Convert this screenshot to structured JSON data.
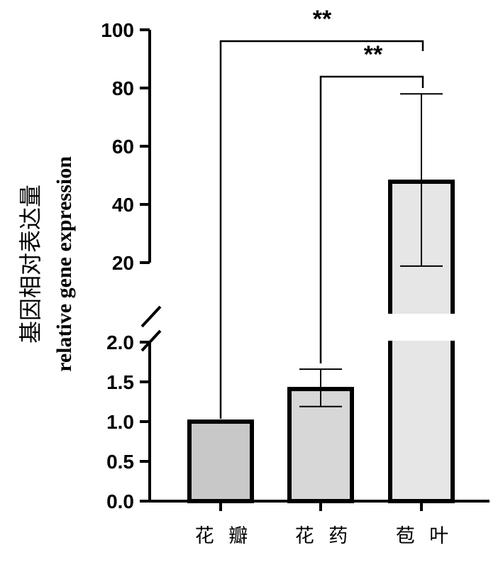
{
  "chart_data": {
    "type": "bar",
    "categories": [
      "花 瓣",
      "花 药",
      "苞 叶"
    ],
    "values": [
      1.0,
      1.41,
      47.8
    ],
    "error_low": [
      1.0,
      1.19,
      18.8
    ],
    "error_high": [
      1.0,
      1.66,
      78.0
    ],
    "bar_colors": [
      "#c8c8c8",
      "#d7d7d7",
      "#e6e6e6"
    ],
    "ylabel_cn": "基因相对表达量",
    "ylabel_en": "relative gene expression",
    "xlabel": "",
    "axis_broken": true,
    "lower_segment": {
      "ylim": [
        0,
        2.0
      ],
      "ticks": [
        0.0,
        0.5,
        1.0,
        1.5,
        2.0
      ],
      "tick_labels": [
        "0.0",
        "0.5",
        "1.0",
        "1.5",
        "2.0"
      ]
    },
    "upper_segment": {
      "ylim": [
        0,
        100
      ],
      "ticks": [
        20,
        40,
        60,
        80,
        100
      ],
      "tick_labels": [
        "20",
        "40",
        "60",
        "80",
        "100"
      ]
    },
    "significance": [
      {
        "from": 0,
        "to": 2,
        "label": "**"
      },
      {
        "from": 1,
        "to": 2,
        "label": "**"
      }
    ]
  }
}
